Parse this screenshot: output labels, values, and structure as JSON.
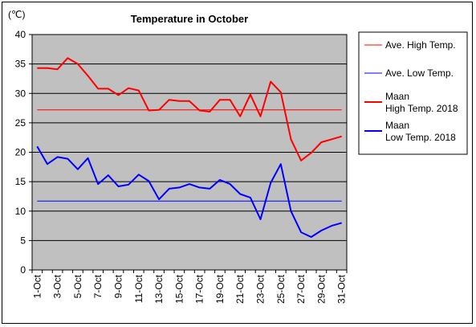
{
  "chart_data": {
    "type": "line",
    "title": "Temperature in October",
    "unit_label": "(℃)",
    "ylim": [
      0,
      40
    ],
    "yticks": [
      0,
      5,
      10,
      15,
      20,
      25,
      30,
      35,
      40
    ],
    "x": [
      "1-Oct",
      "2-Oct",
      "3-Oct",
      "4-Oct",
      "5-Oct",
      "6-Oct",
      "7-Oct",
      "8-Oct",
      "9-Oct",
      "10-Oct",
      "11-Oct",
      "12-Oct",
      "13-Oct",
      "14-Oct",
      "15-Oct",
      "16-Oct",
      "17-Oct",
      "18-Oct",
      "19-Oct",
      "20-Oct",
      "21-Oct",
      "22-Oct",
      "23-Oct",
      "24-Oct",
      "25-Oct",
      "26-Oct",
      "27-Oct",
      "28-Oct",
      "29-Oct",
      "30-Oct",
      "31-Oct"
    ],
    "xtick_labels": [
      "1-Oct",
      "3-Oct",
      "5-Oct",
      "7-Oct",
      "9-Oct",
      "11-Oct",
      "13-Oct",
      "15-Oct",
      "17-Oct",
      "19-Oct",
      "21-Oct",
      "23-Oct",
      "25-Oct",
      "27-Oct",
      "29-Oct",
      "31-Oct"
    ],
    "grid": "horizontal",
    "plot_background": "#c0c0c0",
    "legend_position": "right",
    "series": [
      {
        "name": "Ave. High Temp.",
        "color": "#ff0000",
        "width": 1,
        "values": [
          27.2,
          27.2,
          27.2,
          27.2,
          27.2,
          27.2,
          27.2,
          27.2,
          27.2,
          27.2,
          27.2,
          27.2,
          27.2,
          27.2,
          27.2,
          27.2,
          27.2,
          27.2,
          27.2,
          27.2,
          27.2,
          27.2,
          27.2,
          27.2,
          27.2,
          27.2,
          27.2,
          27.2,
          27.2,
          27.2,
          27.2
        ]
      },
      {
        "name": "Ave. Low Temp.",
        "color": "#0000ff",
        "width": 1,
        "values": [
          11.7,
          11.7,
          11.7,
          11.7,
          11.7,
          11.7,
          11.7,
          11.7,
          11.7,
          11.7,
          11.7,
          11.7,
          11.7,
          11.7,
          11.7,
          11.7,
          11.7,
          11.7,
          11.7,
          11.7,
          11.7,
          11.7,
          11.7,
          11.7,
          11.7,
          11.7,
          11.7,
          11.7,
          11.7,
          11.7,
          11.7
        ]
      },
      {
        "name": "Maan High Temp. 2018",
        "legend_lines": [
          "Maan",
          "High Temp. 2018"
        ],
        "color": "#ff0000",
        "width": 2,
        "values": [
          34.3,
          34.3,
          34.1,
          36.0,
          35.0,
          33.0,
          30.8,
          30.8,
          29.7,
          30.9,
          30.5,
          27.1,
          27.2,
          28.9,
          28.7,
          28.7,
          27.1,
          26.9,
          28.9,
          28.9,
          26.1,
          29.8,
          26.1,
          32.0,
          30.2,
          22.2,
          18.6,
          19.9,
          21.7,
          22.2,
          22.7
        ]
      },
      {
        "name": "Maan Low Temp. 2018",
        "legend_lines": [
          "Maan",
          "Low Temp. 2018"
        ],
        "color": "#0000ff",
        "width": 2,
        "values": [
          21.0,
          18.0,
          19.2,
          18.9,
          17.1,
          19.0,
          14.6,
          16.1,
          14.2,
          14.5,
          16.2,
          15.1,
          12.0,
          13.8,
          14.0,
          14.6,
          14.0,
          13.8,
          15.3,
          14.6,
          12.9,
          12.3,
          8.6,
          14.8,
          18.0,
          10.0,
          6.4,
          5.6,
          6.7,
          7.5,
          8.0
        ]
      }
    ]
  }
}
